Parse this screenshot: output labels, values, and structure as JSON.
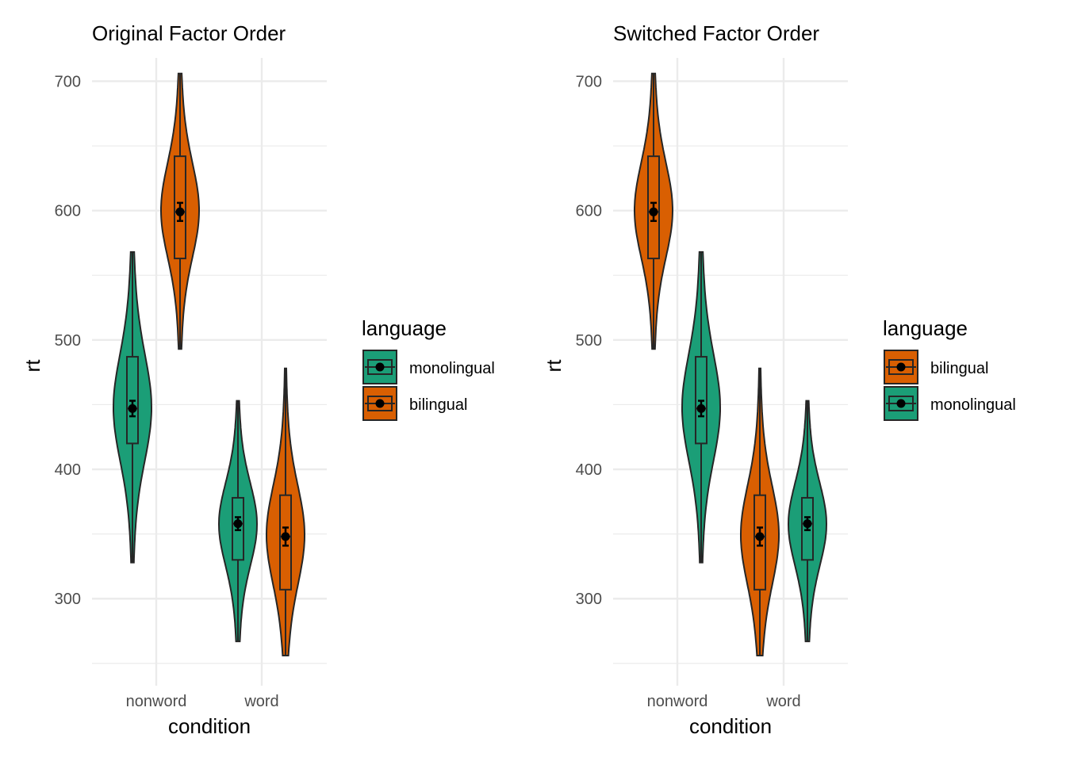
{
  "colors": {
    "monolingual": "#1b9e77",
    "bilingual": "#d95f02",
    "outline": "#262626",
    "grid": "#ebebeb"
  },
  "chart_data": [
    {
      "type": "violin",
      "title": "Original Factor Order",
      "xlabel": "condition",
      "ylabel": "rt",
      "categories": [
        "nonword",
        "word"
      ],
      "yticks": [
        300,
        400,
        500,
        600,
        700
      ],
      "ylim": [
        245,
        715
      ],
      "grid": true,
      "legend": {
        "title": "language",
        "position": "right",
        "entries": [
          "monolingual",
          "bilingual"
        ]
      },
      "groups": [
        {
          "condition": "nonword",
          "language": "monolingual",
          "min": 328,
          "max": 568,
          "q1": 420,
          "median": 447,
          "q3": 487,
          "mean": 447,
          "se": 6,
          "mode": 447
        },
        {
          "condition": "nonword",
          "language": "bilingual",
          "min": 493,
          "max": 706,
          "q1": 563,
          "median": 599,
          "q3": 642,
          "mean": 599,
          "se": 7,
          "mode": 600
        },
        {
          "condition": "word",
          "language": "monolingual",
          "min": 267,
          "max": 453,
          "q1": 330,
          "median": 358,
          "q3": 378,
          "mean": 358,
          "se": 5,
          "mode": 358
        },
        {
          "condition": "word",
          "language": "bilingual",
          "min": 256,
          "max": 478,
          "q1": 307,
          "median": 348,
          "q3": 380,
          "mean": 348,
          "se": 7,
          "mode": 350
        }
      ]
    },
    {
      "type": "violin",
      "title": "Switched Factor Order",
      "xlabel": "condition",
      "ylabel": "rt",
      "categories": [
        "nonword",
        "word"
      ],
      "yticks": [
        300,
        400,
        500,
        600,
        700
      ],
      "ylim": [
        245,
        715
      ],
      "grid": true,
      "legend": {
        "title": "language",
        "position": "right",
        "entries": [
          "bilingual",
          "monolingual"
        ]
      },
      "groups": [
        {
          "condition": "nonword",
          "language": "bilingual",
          "min": 493,
          "max": 706,
          "q1": 563,
          "median": 599,
          "q3": 642,
          "mean": 599,
          "se": 7,
          "mode": 600
        },
        {
          "condition": "nonword",
          "language": "monolingual",
          "min": 328,
          "max": 568,
          "q1": 420,
          "median": 447,
          "q3": 487,
          "mean": 447,
          "se": 6,
          "mode": 447
        },
        {
          "condition": "word",
          "language": "bilingual",
          "min": 256,
          "max": 478,
          "q1": 307,
          "median": 348,
          "q3": 380,
          "mean": 348,
          "se": 7,
          "mode": 350
        },
        {
          "condition": "word",
          "language": "monolingual",
          "min": 267,
          "max": 453,
          "q1": 330,
          "median": 358,
          "q3": 378,
          "mean": 358,
          "se": 5,
          "mode": 358
        }
      ]
    }
  ]
}
